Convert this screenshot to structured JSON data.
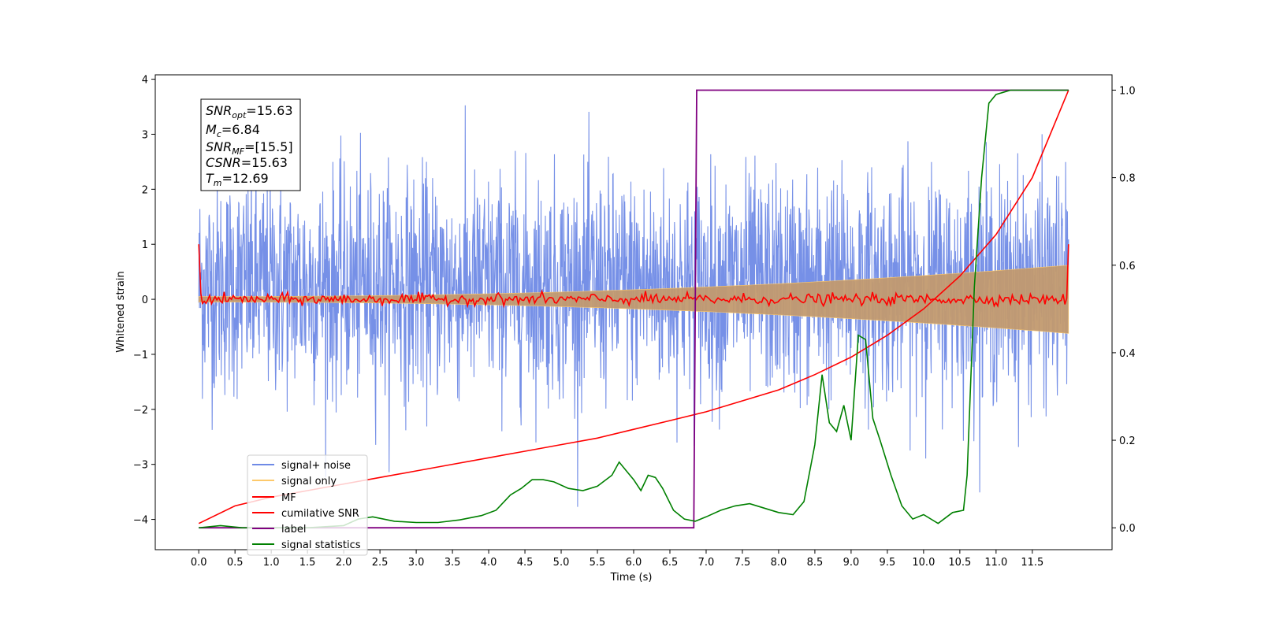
{
  "chart_data": {
    "type": "line",
    "xlabel": "Time (s)",
    "ylabel": "Whitened strain",
    "xlim": [
      -0.6,
      12.6
    ],
    "ylim": [
      -4.55,
      4.08
    ],
    "y2lim": [
      -0.05,
      1.035
    ],
    "x_ticks": [
      "0.0",
      "0.5",
      "1.0",
      "1.5",
      "2.0",
      "2.5",
      "3.0",
      "3.5",
      "4.0",
      "4.5",
      "5.0",
      "5.5",
      "6.0",
      "6.5",
      "7.0",
      "7.5",
      "8.0",
      "8.5",
      "9.0",
      "9.5",
      "10.0",
      "10.5",
      "11.0",
      "11.5"
    ],
    "y_ticks": [
      "4",
      "3",
      "2",
      "1",
      "0",
      "−1",
      "−2",
      "−3",
      "−4"
    ],
    "y2_ticks": [
      "1.0",
      "0.8",
      "0.6",
      "0.4",
      "0.2",
      "0.0"
    ],
    "grid": false,
    "legend_position": "lower-left",
    "info_box": {
      "line1": {
        "base": "SNR",
        "sub": "opt",
        "rest": "=15.63"
      },
      "line2": {
        "base": "M",
        "sub": "c",
        "rest": "=6.84"
      },
      "line3": {
        "base": "SNR",
        "sub": "MF",
        "rest": "=[15.5]"
      },
      "line4": {
        "base": "CSNR",
        "sub": "",
        "rest": "=15.63"
      },
      "line5": {
        "base": "T",
        "sub": "m",
        "rest": "=12.69"
      }
    },
    "series": [
      {
        "name": "signal+ noise",
        "color": "#6f8ae6",
        "axis": "left",
        "description_values": {
          "t_start": 0.0,
          "t_end": 12.0,
          "approx_range": [
            -4.15,
            3.7
          ]
        }
      },
      {
        "name": "signal only",
        "color": "#fdc96b",
        "axis": "left",
        "description_values": {
          "amplitude_start": 0.05,
          "amplitude_end": 0.62
        }
      },
      {
        "name": "MF",
        "color": "#ff0000",
        "axis": "left",
        "description_values": {
          "start": 1.0,
          "typical_range": [
            -0.1,
            0.15
          ],
          "end": 1.0
        }
      },
      {
        "name": "cumilative SNR",
        "color": "#ff0000",
        "axis": "right",
        "x": [
          0.0,
          0.5,
          1.0,
          1.5,
          2.0,
          2.5,
          3.0,
          3.5,
          4.0,
          4.5,
          5.0,
          5.5,
          6.0,
          6.5,
          7.0,
          7.5,
          8.0,
          8.5,
          9.0,
          9.5,
          10.0,
          10.5,
          11.0,
          11.5,
          12.0
        ],
        "values": [
          0.01,
          0.05,
          0.07,
          0.085,
          0.1,
          0.115,
          0.13,
          0.145,
          0.16,
          0.175,
          0.19,
          0.205,
          0.225,
          0.245,
          0.265,
          0.29,
          0.315,
          0.35,
          0.39,
          0.44,
          0.5,
          0.575,
          0.67,
          0.8,
          1.0
        ]
      },
      {
        "name": "label",
        "color": "#800080",
        "axis": "right",
        "x": [
          0.0,
          6.83,
          6.87,
          12.0
        ],
        "values": [
          0.0,
          0.0,
          1.0,
          1.0
        ]
      },
      {
        "name": "signal statistics",
        "color": "#008000",
        "axis": "right",
        "x": [
          0.0,
          0.3,
          0.6,
          1.0,
          1.5,
          2.0,
          2.2,
          2.4,
          2.7,
          3.0,
          3.3,
          3.6,
          3.9,
          4.1,
          4.3,
          4.45,
          4.6,
          4.75,
          4.9,
          5.1,
          5.3,
          5.5,
          5.7,
          5.8,
          5.9,
          6.0,
          6.1,
          6.2,
          6.3,
          6.4,
          6.55,
          6.7,
          6.85,
          7.0,
          7.2,
          7.4,
          7.6,
          7.8,
          8.0,
          8.2,
          8.35,
          8.5,
          8.6,
          8.7,
          8.8,
          8.9,
          9.0,
          9.1,
          9.2,
          9.3,
          9.4,
          9.55,
          9.7,
          9.85,
          10.0,
          10.2,
          10.4,
          10.55,
          10.6,
          10.7,
          10.8,
          10.9,
          11.0,
          11.2,
          11.5,
          12.0
        ],
        "values": [
          0.0,
          0.005,
          0.0,
          0.0,
          0.0,
          0.005,
          0.02,
          0.025,
          0.015,
          0.012,
          0.012,
          0.018,
          0.028,
          0.04,
          0.075,
          0.09,
          0.11,
          0.11,
          0.105,
          0.09,
          0.085,
          0.095,
          0.12,
          0.15,
          0.13,
          0.11,
          0.085,
          0.12,
          0.115,
          0.09,
          0.04,
          0.02,
          0.015,
          0.025,
          0.04,
          0.05,
          0.055,
          0.045,
          0.035,
          0.03,
          0.06,
          0.19,
          0.35,
          0.24,
          0.22,
          0.28,
          0.2,
          0.44,
          0.43,
          0.25,
          0.2,
          0.12,
          0.05,
          0.02,
          0.03,
          0.01,
          0.035,
          0.04,
          0.12,
          0.55,
          0.8,
          0.97,
          0.99,
          1.0,
          1.0,
          1.0
        ]
      }
    ]
  }
}
